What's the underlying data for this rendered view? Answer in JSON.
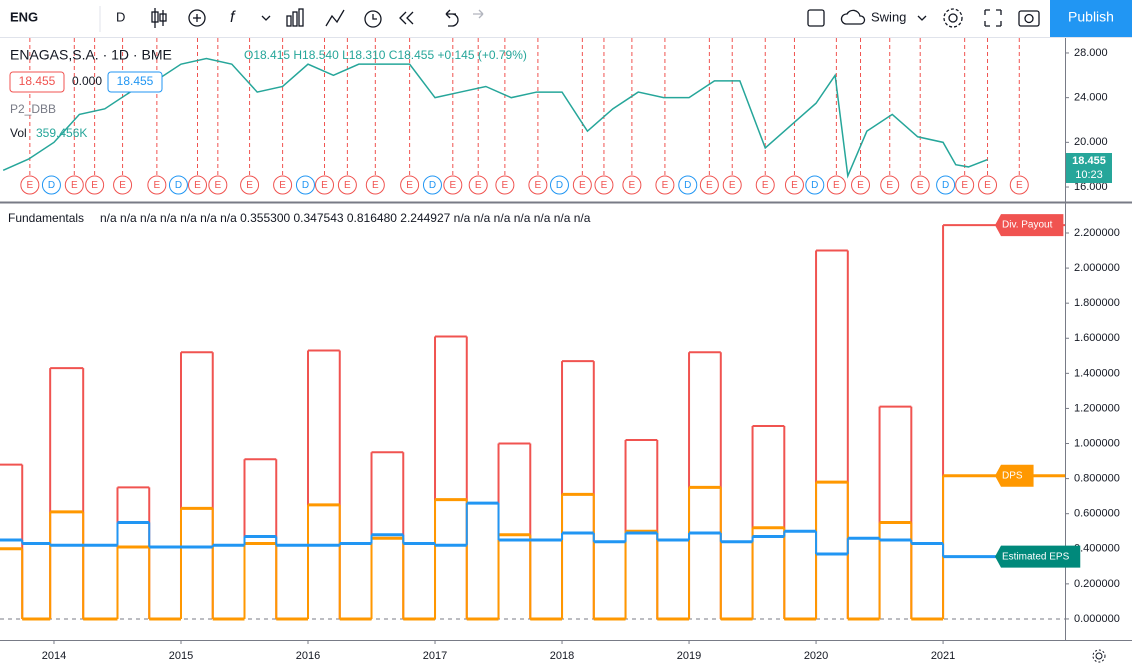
{
  "toolbar": {
    "symbol": "ENG",
    "interval": "D",
    "layout": "Swing",
    "publish": "Publish"
  },
  "price_pane": {
    "legend_title": "ENAGAS,S.A. · 1D · BME",
    "legend_values": "O18.415 H18.540 L18.310 C18.455 +0.145 (+0.79%)",
    "badges": [
      "18.455",
      "0.000",
      "18.455"
    ],
    "indicator": "P2_DBB",
    "volume_label": "Vol",
    "volume_value": "359.456K",
    "last_price": "18.455",
    "countdown": "10:23",
    "chart_data": {
      "type": "line",
      "color": "#26a69a",
      "x": [
        2013.6,
        2013.8,
        2014.0,
        2014.2,
        2014.4,
        2014.6,
        2014.8,
        2015.0,
        2015.2,
        2015.4,
        2015.6,
        2015.8,
        2016.0,
        2016.2,
        2016.4,
        2016.6,
        2016.8,
        2017.0,
        2017.2,
        2017.4,
        2017.6,
        2017.8,
        2018.0,
        2018.2,
        2018.4,
        2018.6,
        2018.8,
        2019.0,
        2019.2,
        2019.4,
        2019.6,
        2019.8,
        2020.0,
        2020.15,
        2020.25,
        2020.4,
        2020.6,
        2020.8,
        2021.0,
        2021.1,
        2021.2,
        2021.35
      ],
      "values": [
        17.5,
        18.5,
        20,
        22.5,
        23,
        24.5,
        25.5,
        27,
        27.5,
        27,
        24.5,
        25,
        27,
        26,
        27,
        27,
        27,
        24,
        24.5,
        25,
        24,
        24.5,
        24.5,
        21,
        23,
        24.5,
        24,
        24,
        25.5,
        25.5,
        19.5,
        21.5,
        23.5,
        26,
        17,
        21,
        22.5,
        20.5,
        20,
        18,
        17.8,
        18.455
      ],
      "xlim": [
        2013.575,
        2021.96
      ],
      "ylim": [
        14.66,
        29.34
      ],
      "yticks": [
        {
          "value": 16,
          "label": "16.000"
        },
        {
          "value": 20,
          "label": "20.000"
        },
        {
          "value": 24,
          "label": "24.000"
        },
        {
          "value": 28,
          "label": "28.000"
        }
      ],
      "events": [
        {
          "x": 2013.81,
          "label": "E"
        },
        {
          "x": 2013.98,
          "label": "D"
        },
        {
          "x": 2014.16,
          "label": "E"
        },
        {
          "x": 2014.32,
          "label": "E"
        },
        {
          "x": 2014.54,
          "label": "E"
        },
        {
          "x": 2014.81,
          "label": "E"
        },
        {
          "x": 2014.98,
          "label": "D"
        },
        {
          "x": 2015.13,
          "label": "E"
        },
        {
          "x": 2015.29,
          "label": "E"
        },
        {
          "x": 2015.54,
          "label": "E"
        },
        {
          "x": 2015.8,
          "label": "E"
        },
        {
          "x": 2015.98,
          "label": "D"
        },
        {
          "x": 2016.13,
          "label": "E"
        },
        {
          "x": 2016.31,
          "label": "E"
        },
        {
          "x": 2016.53,
          "label": "E"
        },
        {
          "x": 2016.8,
          "label": "E"
        },
        {
          "x": 2016.98,
          "label": "D"
        },
        {
          "x": 2017.14,
          "label": "E"
        },
        {
          "x": 2017.34,
          "label": "E"
        },
        {
          "x": 2017.55,
          "label": "E"
        },
        {
          "x": 2017.81,
          "label": "E"
        },
        {
          "x": 2017.98,
          "label": "D"
        },
        {
          "x": 2018.16,
          "label": "E"
        },
        {
          "x": 2018.33,
          "label": "E"
        },
        {
          "x": 2018.55,
          "label": "E"
        },
        {
          "x": 2018.81,
          "label": "E"
        },
        {
          "x": 2018.99,
          "label": "D"
        },
        {
          "x": 2019.16,
          "label": "E"
        },
        {
          "x": 2019.34,
          "label": "E"
        },
        {
          "x": 2019.6,
          "label": "E"
        },
        {
          "x": 2019.83,
          "label": "E"
        },
        {
          "x": 2019.99,
          "label": "D"
        },
        {
          "x": 2020.16,
          "label": "E"
        },
        {
          "x": 2020.35,
          "label": "E"
        },
        {
          "x": 2020.58,
          "label": "E"
        },
        {
          "x": 2020.82,
          "label": "E"
        },
        {
          "x": 2021.02,
          "label": "D"
        },
        {
          "x": 2021.17,
          "label": "E"
        },
        {
          "x": 2021.35,
          "label": "E"
        },
        {
          "x": 2021.6,
          "label": "E"
        }
      ]
    }
  },
  "fundamentals_pane": {
    "title": "Fundamentals",
    "legend_values": "n/a n/a n/a n/a n/a n/a n/a 0.355300 0.347543 0.816480 2.244927 n/a n/a n/a n/a n/a n/a n/a",
    "chart_data": {
      "type": "step",
      "x": [
        2013.575,
        2013.75,
        2013.97,
        2014.23,
        2014.5,
        2014.75,
        2015.0,
        2015.25,
        2015.5,
        2015.75,
        2016.0,
        2016.25,
        2016.5,
        2016.75,
        2017.0,
        2017.25,
        2017.5,
        2017.75,
        2018.0,
        2018.25,
        2018.5,
        2018.75,
        2019.0,
        2019.25,
        2019.5,
        2019.75,
        2020.0,
        2020.25,
        2020.5,
        2020.75,
        2021.0
      ],
      "series": [
        {
          "name": "Div. Payout",
          "color": "#f05350",
          "label_color": "#f05350",
          "values": [
            0.88,
            0,
            1.43,
            0,
            0.75,
            0,
            1.52,
            0,
            0.91,
            0,
            1.53,
            0,
            0.95,
            0,
            1.61,
            0,
            1.0,
            0,
            1.47,
            0,
            1.02,
            0,
            1.52,
            0,
            1.1,
            0,
            2.1,
            0,
            1.21,
            0,
            2.245
          ]
        },
        {
          "name": "DPS",
          "color": "#ff9800",
          "label_color": "#ff9800",
          "values": [
            0.4,
            0,
            0.61,
            0,
            0.41,
            0,
            0.63,
            0,
            0.43,
            0,
            0.65,
            0,
            0.46,
            0,
            0.68,
            0,
            0.48,
            0,
            0.71,
            0,
            0.5,
            0,
            0.75,
            0,
            0.52,
            0,
            0.78,
            0,
            0.55,
            0,
            0.816
          ]
        },
        {
          "name": "Estimated EPS",
          "color": "#2196f3",
          "label_color": "#00897b",
          "values": [
            0.45,
            0.43,
            0.42,
            0.42,
            0.55,
            0.41,
            0.41,
            0.42,
            0.47,
            0.42,
            0.42,
            0.43,
            0.48,
            0.43,
            0.42,
            0.66,
            0.45,
            0.45,
            0.49,
            0.44,
            0.49,
            0.45,
            0.49,
            0.44,
            0.47,
            0.5,
            0.37,
            0.46,
            0.45,
            0.43,
            0.355
          ]
        }
      ],
      "xlim": [
        2013.575,
        2021.96
      ],
      "ylim": [
        -0.12,
        2.371
      ],
      "xticks": [
        2014,
        2015,
        2016,
        2017,
        2018,
        2019,
        2020,
        2021
      ],
      "yticks": [
        {
          "value": 0,
          "label": "0.000000"
        },
        {
          "value": 0.2,
          "label": "0.200000"
        },
        {
          "value": 0.4,
          "label": "0.400000"
        },
        {
          "value": 0.6,
          "label": "0.600000"
        },
        {
          "value": 0.8,
          "label": "0.800000"
        },
        {
          "value": 1.0,
          "label": "1.000000"
        },
        {
          "value": 1.2,
          "label": "1.200000"
        },
        {
          "value": 1.4,
          "label": "1.400000"
        },
        {
          "value": 1.6,
          "label": "1.600000"
        },
        {
          "value": 1.8,
          "label": "1.800000"
        },
        {
          "value": 2.0,
          "label": "2.000000"
        },
        {
          "value": 2.2,
          "label": "2.200000"
        }
      ]
    }
  }
}
